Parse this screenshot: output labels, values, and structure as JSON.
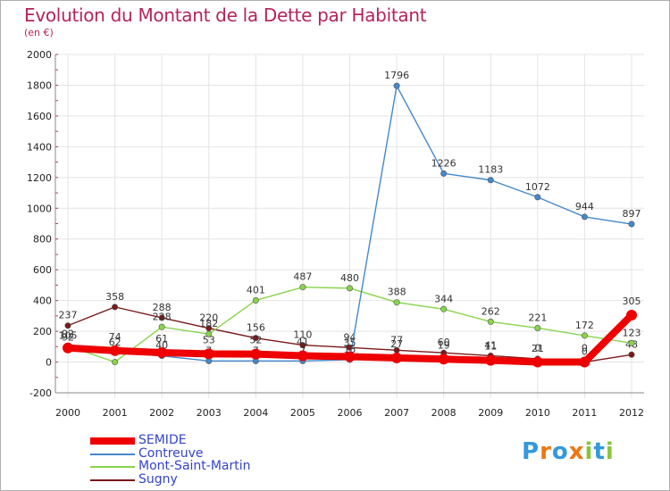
{
  "chart_data": {
    "type": "line",
    "title": "Evolution du Montant de la Dette par Habitant",
    "subtitle": "(en €)",
    "x": [
      "2000",
      "2001",
      "2002",
      "2003",
      "2004",
      "2005",
      "2006",
      "2007",
      "2008",
      "2009",
      "2010",
      "2011",
      "2012"
    ],
    "ylim": [
      -200,
      2000
    ],
    "yticks": [
      -200,
      0,
      200,
      400,
      600,
      800,
      1000,
      1200,
      1400,
      1600,
      1800,
      2000
    ],
    "grid": true,
    "legend_position": "bottom-left",
    "series": [
      {
        "name": "Sugny",
        "color": "#7a1a1a",
        "values": [
          237,
          358,
          288,
          220,
          156,
          110,
          94,
          77,
          60,
          41,
          21,
          0,
          48
        ]
      },
      {
        "name": "Mont-Saint-Martin",
        "color": "#88d44a",
        "values": [
          105,
          0,
          228,
          182,
          401,
          487,
          480,
          388,
          344,
          262,
          221,
          172,
          123
        ]
      },
      {
        "name": "Contreuve",
        "color": "#4488cc",
        "values": [
          92,
          62,
          40,
          7,
          7,
          7,
          15,
          1796,
          1226,
          1183,
          1072,
          944,
          897
        ]
      },
      {
        "name": "SEMIDE",
        "color": "#ee0000",
        "values": [
          92,
          74,
          61,
          53,
          52,
          41,
          35,
          27,
          19,
          11,
          0,
          0,
          305
        ]
      }
    ],
    "legend": [
      "SEMIDE",
      "Contreuve",
      "Mont-Saint-Martin",
      "Sugny"
    ]
  },
  "logo": {
    "letters": [
      "P",
      "r",
      "o",
      "x",
      "i",
      "t",
      "i"
    ],
    "colors": [
      "#3399dd",
      "#ee7711",
      "#3399dd",
      "#ee7711",
      "#88c53e",
      "#3399dd",
      "#88c53e"
    ]
  }
}
